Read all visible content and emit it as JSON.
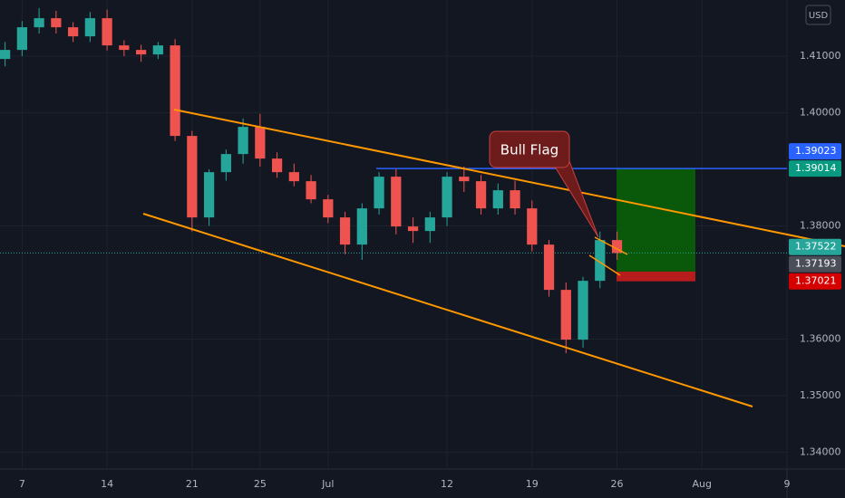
{
  "chart_data": {
    "type": "candlestick",
    "currency": "USD",
    "annotation": "Bull Flag",
    "x": [
      -1,
      0,
      1,
      2,
      3,
      4,
      5,
      6,
      7,
      8,
      9,
      10,
      11,
      12,
      13,
      14,
      15,
      16,
      17,
      18,
      19,
      20,
      21,
      22,
      23,
      24,
      25,
      26,
      27,
      28,
      29,
      30,
      31,
      32,
      33,
      34,
      35
    ],
    "open": [
      1.4095,
      1.4111,
      1.4151,
      1.4167,
      1.4151,
      1.4135,
      1.4167,
      1.4119,
      1.4111,
      1.4103,
      1.4119,
      1.3959,
      1.3815,
      1.3895,
      1.3927,
      1.3975,
      1.3919,
      1.3895,
      1.3879,
      1.3847,
      1.3815,
      1.3767,
      1.3831,
      1.3887,
      1.3799,
      1.3791,
      1.3815,
      1.3887,
      1.3879,
      1.3831,
      1.3863,
      1.3831,
      1.3767,
      1.3687,
      1.3599,
      1.3703,
      1.3775
    ],
    "high": [
      1.4125,
      1.4162,
      1.4185,
      1.418,
      1.416,
      1.4178,
      1.4182,
      1.4128,
      1.412,
      1.4125,
      1.413,
      1.3968,
      1.39,
      1.3935,
      1.399,
      1.3998,
      1.393,
      1.391,
      1.389,
      1.3855,
      1.3825,
      1.384,
      1.3895,
      1.39,
      1.3815,
      1.3825,
      1.3895,
      1.3905,
      1.389,
      1.3875,
      1.388,
      1.3845,
      1.3775,
      1.37,
      1.371,
      1.379,
      1.379
    ],
    "low": [
      1.4082,
      1.41,
      1.414,
      1.414,
      1.4125,
      1.4125,
      1.411,
      1.41,
      1.409,
      1.4095,
      1.395,
      1.379,
      1.38,
      1.388,
      1.391,
      1.3905,
      1.3885,
      1.387,
      1.384,
      1.3805,
      1.375,
      1.374,
      1.382,
      1.3785,
      1.377,
      1.377,
      1.38,
      1.386,
      1.382,
      1.382,
      1.382,
      1.3755,
      1.3675,
      1.3575,
      1.3585,
      1.369,
      1.374
    ],
    "close": [
      1.4111,
      1.4151,
      1.4167,
      1.4151,
      1.4135,
      1.4167,
      1.4119,
      1.4111,
      1.4103,
      1.4119,
      1.3959,
      1.3815,
      1.3895,
      1.3927,
      1.3975,
      1.3919,
      1.3895,
      1.3879,
      1.3847,
      1.3815,
      1.3767,
      1.3831,
      1.3887,
      1.3799,
      1.3791,
      1.3815,
      1.3887,
      1.3879,
      1.3831,
      1.3863,
      1.3831,
      1.3767,
      1.3687,
      1.3599,
      1.3703,
      1.3775,
      1.37522
    ],
    "up_color": "#26a69a",
    "down_color": "#ef5350",
    "xlim": [
      -1.3,
      45
    ],
    "xticks": [
      {
        "value": 0,
        "label": "7"
      },
      {
        "value": 5,
        "label": "14"
      },
      {
        "value": 10,
        "label": "21"
      },
      {
        "value": 14,
        "label": "25"
      },
      {
        "value": 18,
        "label": "Jul"
      },
      {
        "value": 25,
        "label": "12"
      },
      {
        "value": 30,
        "label": "19"
      },
      {
        "value": 35,
        "label": "26"
      },
      {
        "value": 40,
        "label": "Aug"
      },
      {
        "value": 45,
        "label": "9"
      }
    ],
    "ylim": [
      1.33704,
      1.41992
    ],
    "yticks": [
      {
        "value": 1.41,
        "label": "1.41000"
      },
      {
        "value": 1.4,
        "label": "1.40000"
      },
      {
        "value": 1.38,
        "label": "1.38000"
      },
      {
        "value": 1.36,
        "label": "1.36000"
      },
      {
        "value": 1.35,
        "label": "1.35000"
      },
      {
        "value": 1.34,
        "label": "1.34000"
      }
    ],
    "price_labels": [
      {
        "value": 1.39023,
        "label": "1.39023",
        "color": "#2962ff"
      },
      {
        "value": 1.39014,
        "label": "1.39014",
        "color": "#089981"
      },
      {
        "value": 1.37522,
        "label": "1.37522",
        "color": "#26a69a"
      },
      {
        "value": 1.37193,
        "label": "1.37193",
        "color": "#4a4e59"
      },
      {
        "value": 1.37021,
        "label": "1.37021",
        "color": "#d50000"
      }
    ],
    "position": {
      "target": 1.39014,
      "entry": 1.37193,
      "stop": 1.37021
    }
  }
}
